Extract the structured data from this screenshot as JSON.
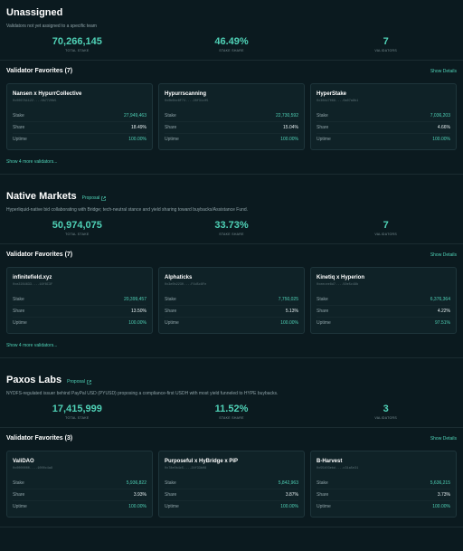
{
  "teams": [
    {
      "title": "Unassigned",
      "proposal": "",
      "description": "Validators not yet assigned to a specific team",
      "stats": [
        {
          "value": "70,266,145",
          "label": "TOTAL STAKE"
        },
        {
          "value": "46.49%",
          "label": "STAKE SHARE"
        },
        {
          "value": "7",
          "label": "VALIDATORS"
        }
      ],
      "favorites_title": "Validator Favorites (7)",
      "show_details": "Show Details",
      "cards": [
        {
          "name": "Nansen x HypurrCollective",
          "addr": "0x0067A1122....0A7720b5",
          "stake": "27,949,463",
          "share": "18.49%",
          "uptime": "100.00%"
        },
        {
          "name": "Hypurrscanning",
          "addr": "0x0b6bc8F74....28f31c05",
          "stake": "22,730,592",
          "share": "15.04%",
          "uptime": "100.00%"
        },
        {
          "name": "HyperStake",
          "addr": "0x30A47068....0a07a8b1",
          "stake": "7,036,203",
          "share": "4.66%",
          "uptime": "100.00%"
        }
      ],
      "show_more": "Show 4 more validators..."
    },
    {
      "title": "Native Markets",
      "proposal": "Proposal",
      "description": "Hyperliquid-native bid collaborating with Bridge; tech-neutral stance and yield sharing toward buybacks/Assistance Fund.",
      "stats": [
        {
          "value": "50,974,075",
          "label": "TOTAL STAKE"
        },
        {
          "value": "33.73%",
          "label": "STAKE SHARE"
        },
        {
          "value": "7",
          "label": "VALIDATORS"
        }
      ],
      "favorites_title": "Validator Favorites (7)",
      "show_details": "Show Details",
      "cards": [
        {
          "name": "infinitefield.xyz",
          "addr": "0xe2284633....16f8C3F",
          "stake": "20,399,457",
          "share": "13.50%",
          "uptime": "100.00%"
        },
        {
          "name": "Alphaticks",
          "addr": "0x3e0b2230....F4d5c8Fe",
          "stake": "7,750,025",
          "share": "5.13%",
          "uptime": "100.00%"
        },
        {
          "name": "Kinetiq x Hyperion",
          "addr": "0xeecee8d7....50e5c48b",
          "stake": "6,376,364",
          "share": "4.22%",
          "uptime": "97.51%"
        }
      ],
      "show_more": "Show 4 more validators..."
    },
    {
      "title": "Paxos Labs",
      "proposal": "Proposal",
      "description": "NYDFS-regulated issuer behind PayPal USD (PYUSD) proposing a compliance-first USDH with most yield funneled to HYPE buybacks.",
      "stats": [
        {
          "value": "17,415,999",
          "label": "TOTAL STAKE"
        },
        {
          "value": "11.52%",
          "label": "STAKE SHARE"
        },
        {
          "value": "3",
          "label": "VALIDATORS"
        }
      ],
      "favorites_title": "Validator Favorites (3)",
      "show_details": "Show Details",
      "cards": [
        {
          "name": "ValiDAO",
          "addr": "0x0000000....1000c4a8",
          "stake": "5,936,822",
          "share": "3.93%",
          "uptime": "100.00%"
        },
        {
          "name": "Purposeful x HyBridge x PiP",
          "addr": "0x78e0b4c5....24f33b08",
          "stake": "5,842,963",
          "share": "3.87%",
          "uptime": "100.00%"
        },
        {
          "name": "B-Harvest",
          "addr": "0x55403ebd....c31a5e31",
          "stake": "5,636,215",
          "share": "3.73%",
          "uptime": "100.00%"
        }
      ],
      "show_more": ""
    }
  ],
  "row_labels": {
    "stake": "Stake",
    "share": "Share",
    "uptime": "Uptime"
  },
  "colors": {
    "accent": "#4fd1b6",
    "background": "#0b1a1f",
    "card": "#0f2227"
  },
  "icons": {
    "proposal_link": "external-link-icon"
  }
}
